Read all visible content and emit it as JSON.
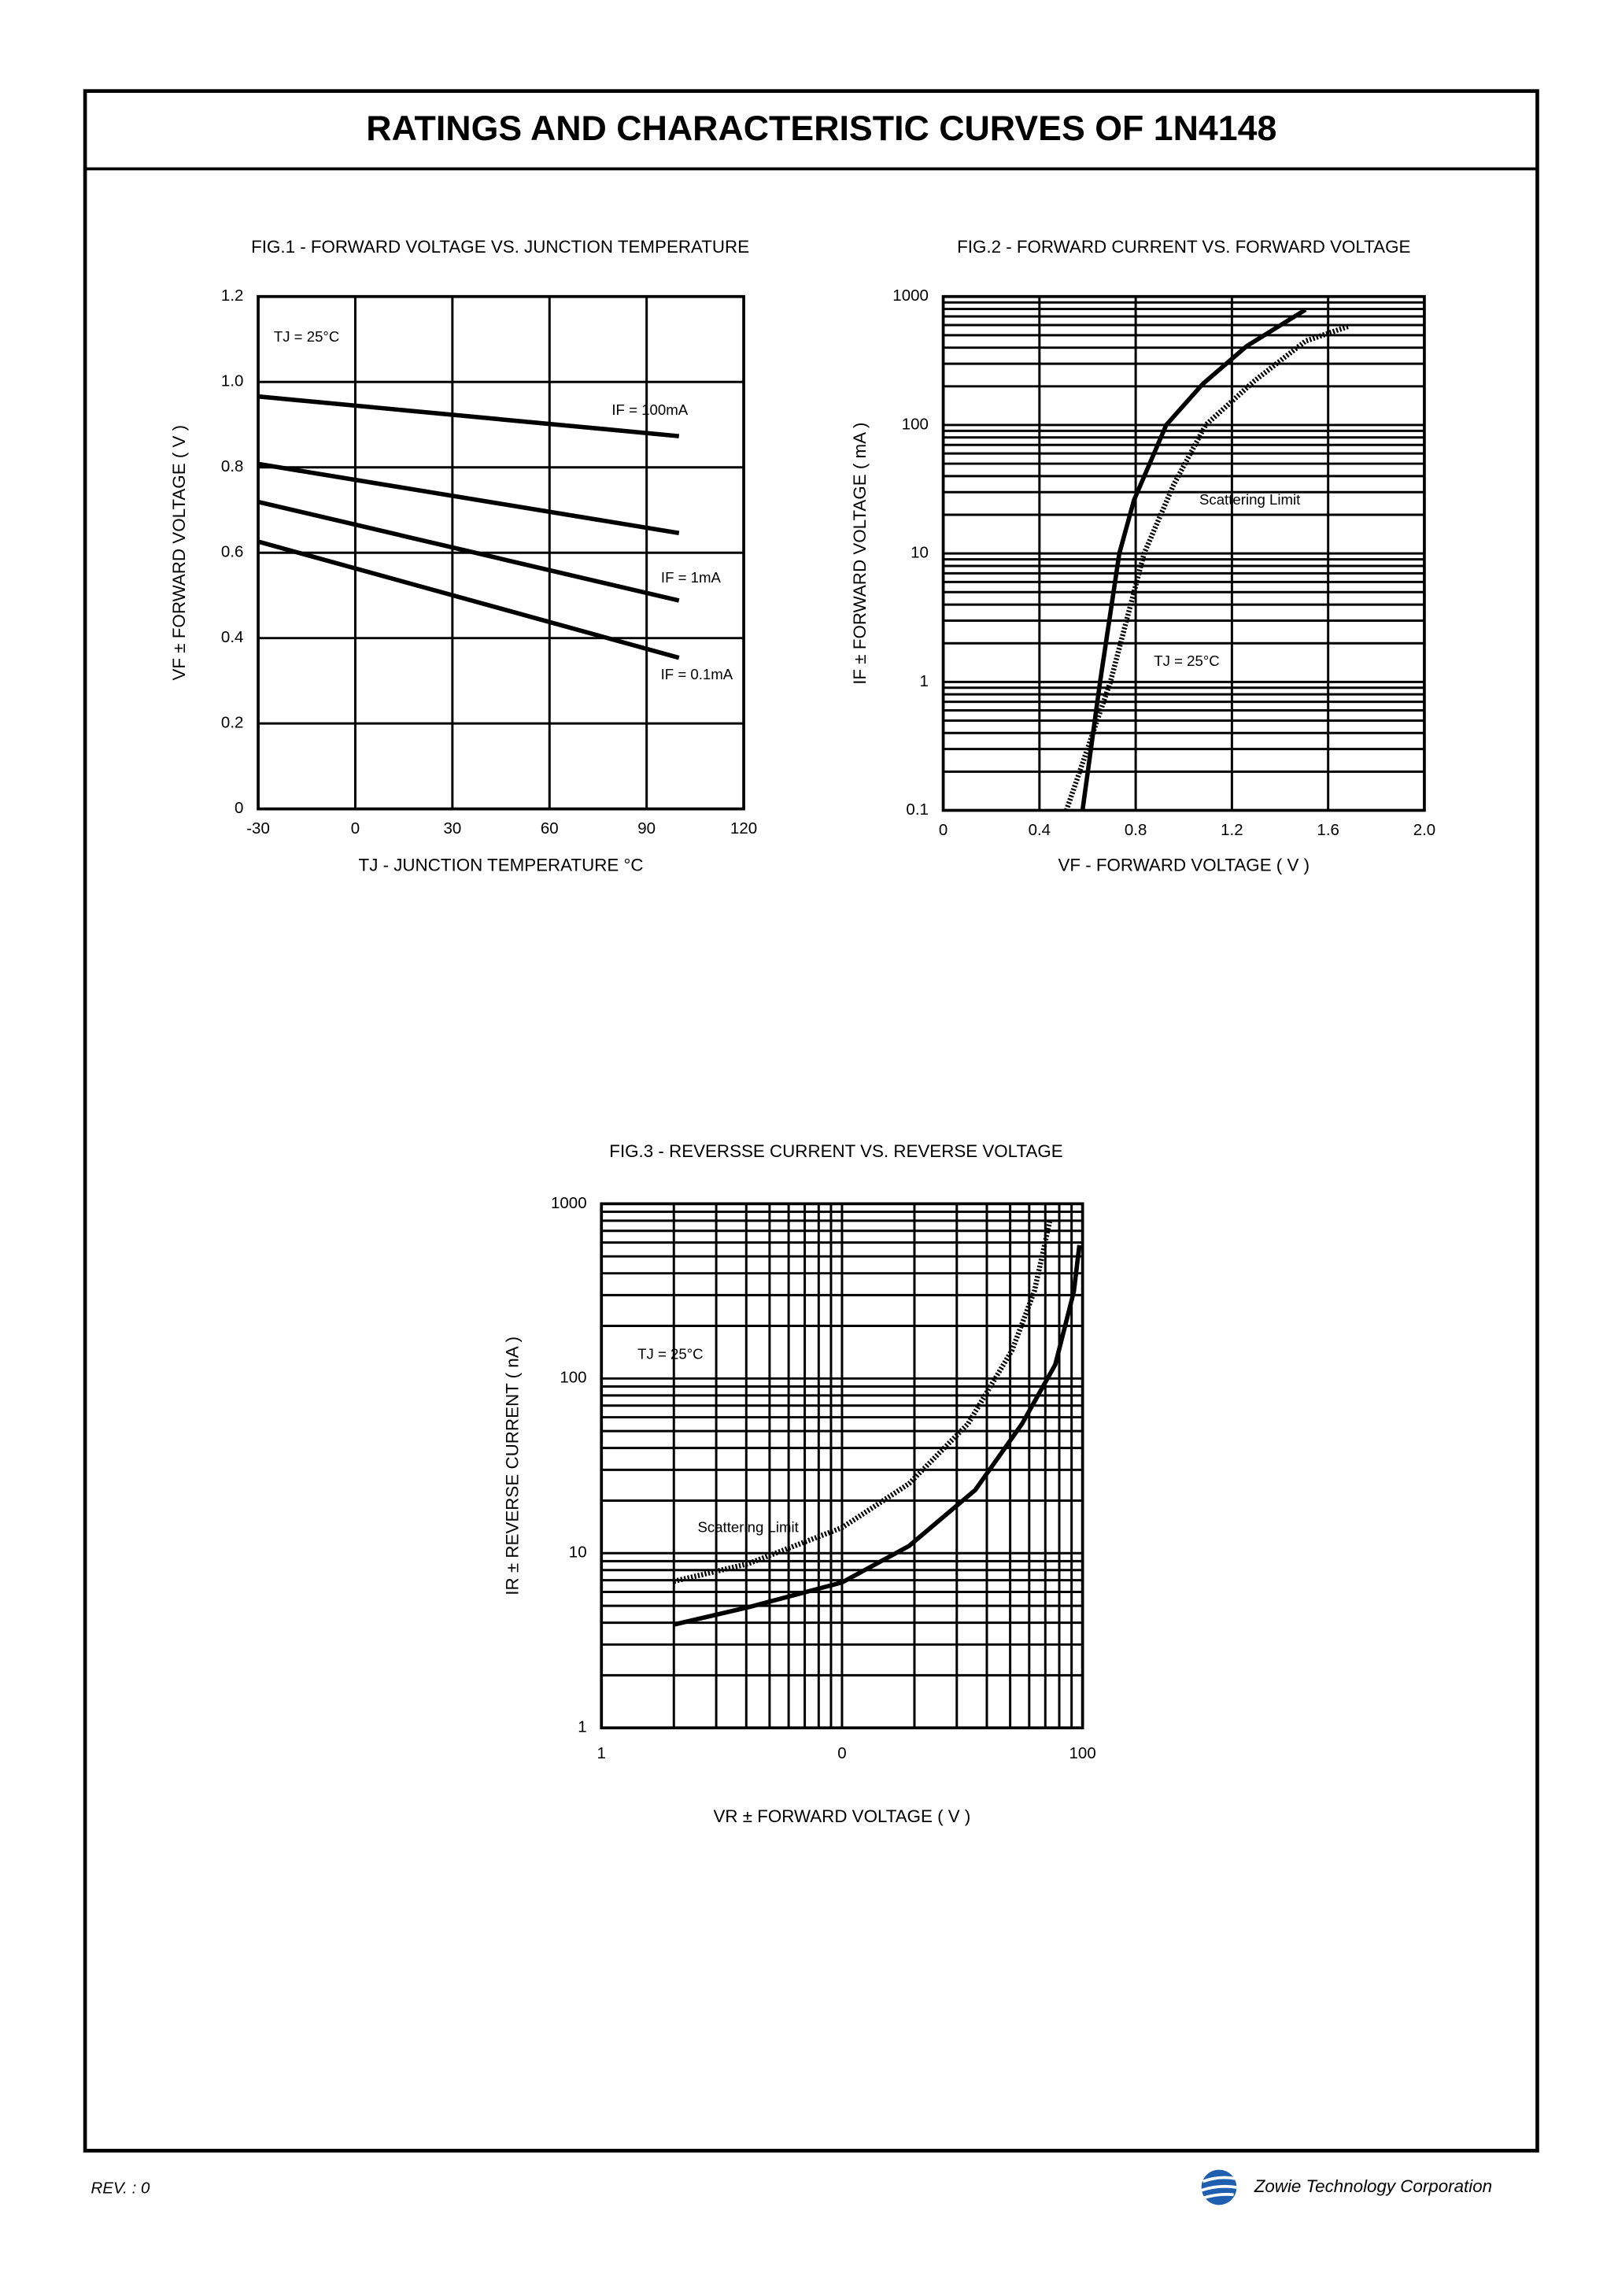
{
  "header": {
    "title": "RATINGS AND CHARACTERISTIC CURVES OF 1N4148"
  },
  "chart_data": [
    {
      "type": "line",
      "title": "FIG.1 - FORWARD VOLTAGE VS. JUNCTION TEMPERATURE",
      "x_label": "TJ - JUNCTION TEMPERATURE °C",
      "y_label": "VF ± FORWARD VOLTAGE ( V )",
      "annotations": [
        "TJ = 25°C"
      ],
      "x": [
        -30,
        100
      ],
      "series": [
        {
          "name": "IF = 100mA",
          "color": "#000000",
          "style": "solid",
          "values": [
            0.966,
            0.873
          ]
        },
        {
          "color": "#000000",
          "style": "solid",
          "values": [
            0.808,
            0.646
          ]
        },
        {
          "name": "IF = 1mA",
          "color": "#000000",
          "style": "solid",
          "values": [
            0.719,
            0.488
          ]
        },
        {
          "name": "IF = 0.1mA",
          "color": "#000000",
          "style": "solid",
          "values": [
            0.626,
            0.354
          ]
        }
      ],
      "xlim": [
        -30,
        120
      ],
      "xticks": [
        -30,
        0,
        30,
        60,
        90,
        120
      ],
      "ylim": [
        0,
        1.2
      ],
      "yticks": [
        0,
        0.2,
        0.4,
        0.6,
        0.8,
        {
          "value": 1,
          "label": "1.0"
        },
        1.2
      ],
      "grid": true
    },
    {
      "type": "line",
      "title": "FIG.2 - FORWARD CURRENT VS. FORWARD VOLTAGE",
      "x_label": "VF - FORWARD VOLTAGE ( V )",
      "y_label": "IF ± FORWARD VOLTAGE ( mA )",
      "annotations": [
        "TJ = 25°C"
      ],
      "series": [
        {
          "color": "#000000",
          "style": "solid",
          "x": [
            0.579,
            0.652,
            0.732,
            0.793,
            0.927,
            1.079,
            1.262,
            1.506
          ],
          "values": [
            0.1,
            1,
            10,
            26,
            100,
            209,
            412,
            790
          ]
        },
        {
          "name": "Scattering Limit",
          "color": "#000000",
          "style": "dotted",
          "x": [
            0.512,
            0.695,
            0.835,
            0.957,
            1.091,
            1.293,
            1.506,
            1.689
          ],
          "values": [
            0.1,
            1,
            10,
            34,
            100,
            220,
            450,
            590
          ]
        }
      ],
      "xlim": [
        0,
        2
      ],
      "xticks": [
        0,
        0.4,
        0.8,
        1.2,
        1.6,
        {
          "value": 2,
          "label": "2.0"
        }
      ],
      "ylim": [
        0.1,
        1000
      ],
      "yticks": [
        0.1,
        1,
        10,
        100,
        1000
      ],
      "yscale": "log",
      "grid": true
    },
    {
      "type": "line",
      "title": "FIG.3 - REVERSSE CURRENT VS. REVERSE VOLTAGE",
      "x_label": "VR ± FORWARD VOLTAGE ( V )",
      "y_label": "IR ± REVERSE CURRENT ( nA )",
      "annotations": [
        "TJ = 25°C"
      ],
      "series": [
        {
          "color": "#000000",
          "style": "solid",
          "x": [
            2,
            4.07,
            10,
            19,
            35.8,
            56,
            77,
            92,
            97
          ],
          "values": [
            3.9,
            4.9,
            6.8,
            11,
            23,
            55,
            120,
            315,
            580
          ]
        },
        {
          "name": "Scattering Limit",
          "color": "#000000",
          "style": "dotted",
          "x": [
            2,
            4.07,
            10,
            19,
            33.4,
            50.9,
            63,
            73
          ],
          "values": [
            6.9,
            8.7,
            14,
            25,
            55,
            145,
            315,
            790
          ]
        }
      ],
      "xlim": [
        1,
        100
      ],
      "xticks": [
        1,
        {
          "value": 10,
          "label": "0"
        },
        100
      ],
      "xscale": "log",
      "ylim": [
        1,
        1000
      ],
      "yticks": [
        1,
        10,
        100,
        1000
      ],
      "yscale": "log",
      "grid": true
    }
  ],
  "footer": {
    "revision": "REV. : 0",
    "company": "Zowie Technology Corporation"
  }
}
